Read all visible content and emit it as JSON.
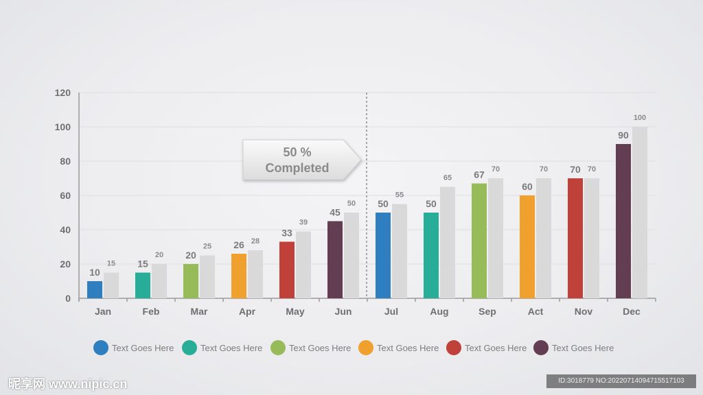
{
  "chart_data": {
    "type": "bar",
    "categories": [
      "Jan",
      "Feb",
      "Mar",
      "Apr",
      "May",
      "Jun",
      "Jul",
      "Aug",
      "Sep",
      "Act",
      "Nov",
      "Dec"
    ],
    "series": [
      {
        "values": [
          10,
          15,
          20,
          26,
          33,
          45,
          50,
          50,
          67,
          60,
          70,
          90
        ]
      },
      {
        "values": [
          15,
          20,
          25,
          28,
          39,
          50,
          55,
          65,
          70,
          70,
          70,
          100
        ]
      }
    ],
    "ylim": [
      0,
      120
    ],
    "yticks": [
      0,
      20,
      40,
      60,
      80,
      100,
      120
    ],
    "grid": true,
    "title": "",
    "xlabel": "",
    "ylabel": "",
    "legend_position": "bottom",
    "legend": [
      "Text Goes Here",
      "Text Goes Here",
      "Text Goes Here",
      "Text Goes Here",
      "Text Goes Here",
      "Text Goes Here"
    ],
    "annotation": {
      "line1": "50 %",
      "line2": "Completed",
      "after_category": "Jun"
    }
  },
  "colors": {
    "bar_colors": [
      "#2f7ebf",
      "#28ae98",
      "#98bb59",
      "#f0a12d",
      "#c0413a",
      "#633d52"
    ],
    "secondary_bar": "#d9d9d9",
    "axis": "#9a9a9a",
    "grid": "#dedede"
  },
  "watermark": {
    "site": "昵享网 www.nipic.cn",
    "id": "ID:3018779 NO:20220714094715517103"
  }
}
